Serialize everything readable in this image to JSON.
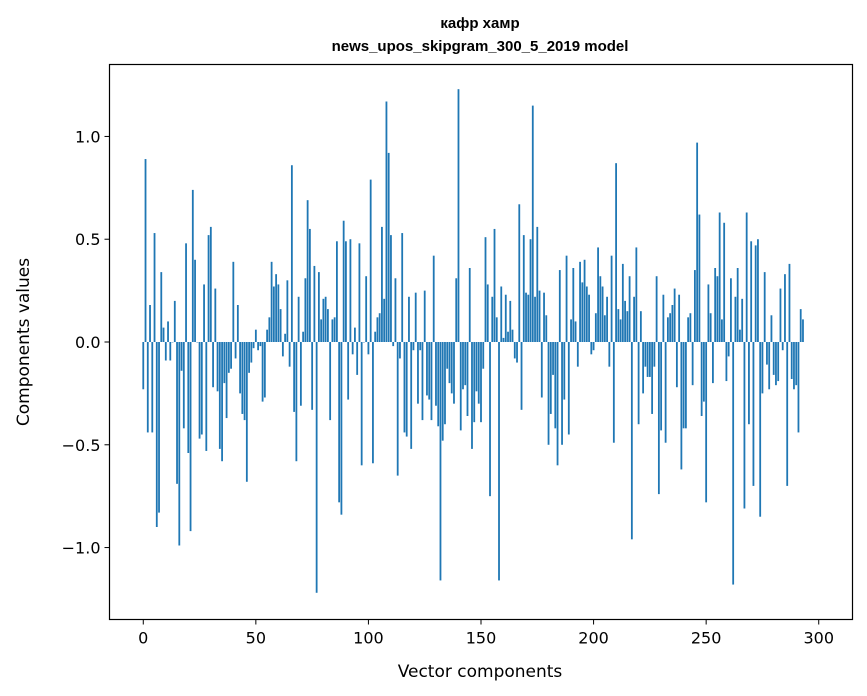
{
  "chart_data": {
    "type": "bar",
    "title": "кафр хамр",
    "subtitle": "news_upos_skipgram_300_5_2019 model",
    "xlabel": "Vector components",
    "ylabel": "Components values",
    "xlim": [
      -15,
      315
    ],
    "ylim": [
      -1.35,
      1.35
    ],
    "xticks": [
      0,
      50,
      100,
      150,
      200,
      250,
      300
    ],
    "yticks": [
      -1.0,
      -0.5,
      0.0,
      0.5,
      1.0
    ],
    "xtick_labels": [
      "0",
      "50",
      "100",
      "150",
      "200",
      "250",
      "300"
    ],
    "ytick_labels": [
      "−1.0",
      "−0.5",
      "0.0",
      "0.5",
      "1.0"
    ],
    "bar_color": "#1f77b4",
    "grid": false,
    "series": [
      {
        "values": [
          -0.23,
          0.89,
          -0.44,
          0.18,
          -0.44,
          0.53,
          -0.9,
          -0.83,
          0.34,
          0.07,
          -0.09,
          0.1,
          -0.09,
          0.0,
          0.2,
          -0.69,
          -0.99,
          -0.14,
          -0.42,
          0.48,
          -0.54,
          -0.92,
          0.74,
          0.4,
          0.0,
          -0.47,
          -0.45,
          0.28,
          -0.53,
          0.52,
          0.56,
          -0.22,
          0.26,
          -0.24,
          -0.52,
          -0.58,
          -0.2,
          -0.37,
          -0.15,
          -0.13,
          0.39,
          -0.08,
          0.18,
          -0.25,
          -0.35,
          -0.38,
          -0.68,
          -0.15,
          -0.1,
          -0.03,
          0.06,
          -0.04,
          -0.02,
          -0.29,
          -0.27,
          0.06,
          0.12,
          0.39,
          0.27,
          0.33,
          0.28,
          0.16,
          -0.07,
          0.04,
          0.3,
          -0.12,
          0.86,
          -0.34,
          -0.58,
          0.22,
          -0.31,
          0.05,
          0.31,
          0.69,
          0.55,
          -0.33,
          0.37,
          -1.22,
          0.34,
          0.11,
          0.21,
          0.22,
          0.16,
          -0.38,
          0.11,
          0.12,
          0.49,
          -0.78,
          -0.84,
          0.59,
          0.49,
          -0.28,
          0.5,
          -0.06,
          0.07,
          -0.16,
          0.48,
          -0.6,
          0.0,
          0.32,
          -0.06,
          0.79,
          -0.59,
          0.05,
          0.12,
          0.14,
          0.56,
          0.21,
          1.17,
          0.92,
          0.52,
          -0.02,
          0.31,
          -0.65,
          -0.08,
          0.53,
          -0.44,
          -0.46,
          0.22,
          -0.52,
          -0.04,
          0.24,
          -0.3,
          -0.04,
          -0.38,
          0.25,
          -0.26,
          -0.28,
          -0.38,
          0.42,
          -0.31,
          -0.41,
          -1.16,
          -0.48,
          -0.4,
          -0.13,
          -0.2,
          -0.25,
          -0.3,
          0.31,
          1.23,
          -0.43,
          -0.23,
          -0.21,
          -0.36,
          0.36,
          -0.52,
          -0.39,
          -0.24,
          -0.3,
          -0.39,
          -0.13,
          0.51,
          0.28,
          -0.75,
          0.22,
          0.55,
          0.12,
          -1.16,
          0.27,
          0.02,
          0.23,
          0.05,
          0.2,
          0.06,
          -0.08,
          -0.1,
          0.67,
          -0.33,
          0.52,
          0.24,
          0.23,
          0.5,
          1.15,
          0.22,
          0.56,
          0.25,
          -0.27,
          0.24,
          0.13,
          -0.5,
          -0.35,
          -0.16,
          -0.42,
          -0.6,
          0.35,
          -0.5,
          -0.28,
          0.42,
          -0.45,
          0.11,
          0.36,
          0.1,
          -0.12,
          0.39,
          0.29,
          0.4,
          0.27,
          0.23,
          -0.06,
          -0.04,
          0.14,
          0.46,
          0.32,
          0.27,
          0.13,
          0.22,
          -0.12,
          0.42,
          -0.49,
          0.87,
          0.16,
          0.11,
          0.38,
          0.2,
          0.15,
          0.32,
          -0.96,
          0.22,
          0.46,
          -0.4,
          0.15,
          -0.25,
          -0.12,
          -0.17,
          -0.17,
          -0.35,
          -0.12,
          0.32,
          -0.74,
          -0.43,
          0.23,
          -0.49,
          0.12,
          0.14,
          0.18,
          0.26,
          -0.22,
          0.23,
          -0.62,
          -0.42,
          -0.42,
          0.12,
          0.14,
          -0.21,
          0.35,
          0.97,
          0.62,
          -0.36,
          -0.29,
          -0.78,
          0.28,
          0.14,
          -0.2,
          0.36,
          0.32,
          0.63,
          0.11,
          0.58,
          -0.19,
          -0.07,
          0.31,
          -1.18,
          0.22,
          0.36,
          0.06,
          0.21,
          -0.81,
          0.63,
          -0.4,
          0.49,
          -0.7,
          0.47,
          0.5,
          -0.85,
          -0.25,
          0.34,
          -0.11,
          -0.23,
          0.13,
          -0.16,
          -0.21,
          -0.19,
          0.26,
          -0.04,
          0.33,
          -0.7,
          0.38,
          -0.18,
          -0.23,
          -0.21,
          -0.44,
          0.16,
          0.11
        ]
      }
    ]
  }
}
